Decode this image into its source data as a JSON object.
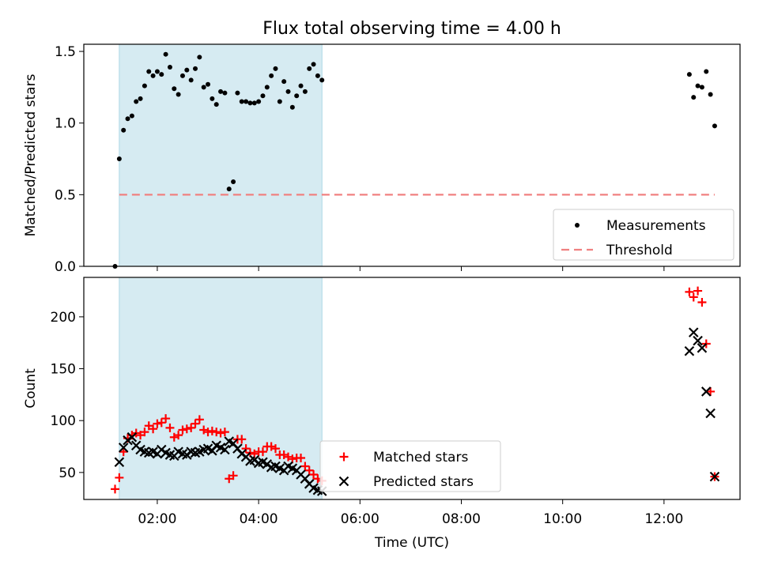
{
  "chart_data": {
    "title": "Flux total observing time = 4.00 h",
    "shaded_span": {
      "start": "01:15",
      "end": "05:15",
      "color": "#add8e6"
    },
    "xlabel": "Time (UTC)",
    "x_ticks": [
      "02:00",
      "04:00",
      "06:00",
      "08:00",
      "10:00",
      "12:00"
    ],
    "panels": [
      {
        "type": "scatter",
        "ylabel": "Matched/Predicted stars",
        "ylim": [
          0,
          1.55
        ],
        "y_ticks": [
          "0.0",
          "0.5",
          "1.0",
          "1.5"
        ],
        "legend_position": "lower-right",
        "series": [
          {
            "name": "Measurements",
            "marker": "dot",
            "color": "#000000",
            "points": [
              [
                "01:10",
                0.0
              ],
              [
                "01:15",
                0.75
              ],
              [
                "01:20",
                0.95
              ],
              [
                "01:25",
                1.03
              ],
              [
                "01:30",
                1.05
              ],
              [
                "01:35",
                1.15
              ],
              [
                "01:40",
                1.17
              ],
              [
                "01:45",
                1.26
              ],
              [
                "01:50",
                1.36
              ],
              [
                "01:55",
                1.33
              ],
              [
                "02:00",
                1.36
              ],
              [
                "02:05",
                1.34
              ],
              [
                "02:10",
                1.48
              ],
              [
                "02:15",
                1.39
              ],
              [
                "02:20",
                1.24
              ],
              [
                "02:25",
                1.2
              ],
              [
                "02:30",
                1.33
              ],
              [
                "02:35",
                1.37
              ],
              [
                "02:40",
                1.3
              ],
              [
                "02:45",
                1.38
              ],
              [
                "02:50",
                1.46
              ],
              [
                "02:55",
                1.25
              ],
              [
                "03:00",
                1.27
              ],
              [
                "03:05",
                1.17
              ],
              [
                "03:10",
                1.13
              ],
              [
                "03:15",
                1.22
              ],
              [
                "03:20",
                1.21
              ],
              [
                "03:25",
                0.54
              ],
              [
                "03:30",
                0.59
              ],
              [
                "03:35",
                1.21
              ],
              [
                "03:40",
                1.15
              ],
              [
                "03:45",
                1.15
              ],
              [
                "03:50",
                1.14
              ],
              [
                "03:55",
                1.14
              ],
              [
                "04:00",
                1.15
              ],
              [
                "04:05",
                1.19
              ],
              [
                "04:10",
                1.25
              ],
              [
                "04:15",
                1.33
              ],
              [
                "04:20",
                1.38
              ],
              [
                "04:25",
                1.15
              ],
              [
                "04:30",
                1.29
              ],
              [
                "04:35",
                1.22
              ],
              [
                "04:40",
                1.11
              ],
              [
                "04:45",
                1.19
              ],
              [
                "04:50",
                1.26
              ],
              [
                "04:55",
                1.22
              ],
              [
                "05:00",
                1.38
              ],
              [
                "05:05",
                1.41
              ],
              [
                "05:10",
                1.33
              ],
              [
                "05:15",
                1.3
              ],
              [
                "12:30",
                1.34
              ],
              [
                "12:35",
                1.18
              ],
              [
                "12:40",
                1.26
              ],
              [
                "12:45",
                1.25
              ],
              [
                "12:50",
                1.36
              ],
              [
                "12:55",
                1.2
              ],
              [
                "13:00",
                0.98
              ]
            ]
          },
          {
            "name": "Threshold",
            "kind": "line",
            "style": "dashed",
            "color": "#f08080",
            "points": [
              [
                "01:15",
                0.5
              ],
              [
                "13:00",
                0.5
              ]
            ]
          }
        ]
      },
      {
        "type": "scatter",
        "ylabel": "Count",
        "ylim": [
          24,
          238
        ],
        "y_ticks": [
          "50",
          "100",
          "150",
          "200"
        ],
        "legend_position": "lower-center",
        "series": [
          {
            "name": "Matched stars",
            "marker": "plus",
            "color": "#ff0000",
            "points": [
              [
                "01:10",
                34
              ],
              [
                "01:15",
                45
              ],
              [
                "01:20",
                70
              ],
              [
                "01:25",
                83
              ],
              [
                "01:30",
                86
              ],
              [
                "01:35",
                88
              ],
              [
                "01:40",
                86
              ],
              [
                "01:45",
                89
              ],
              [
                "01:50",
                95
              ],
              [
                "01:55",
                92
              ],
              [
                "02:00",
                97
              ],
              [
                "02:05",
                98
              ],
              [
                "02:10",
                102
              ],
              [
                "02:15",
                93
              ],
              [
                "02:20",
                84
              ],
              [
                "02:25",
                86
              ],
              [
                "02:30",
                91
              ],
              [
                "02:35",
                92
              ],
              [
                "02:40",
                93
              ],
              [
                "02:45",
                97
              ],
              [
                "02:50",
                101
              ],
              [
                "02:55",
                91
              ],
              [
                "03:00",
                89
              ],
              [
                "03:05",
                90
              ],
              [
                "03:10",
                89
              ],
              [
                "03:15",
                88
              ],
              [
                "03:20",
                89
              ],
              [
                "03:25",
                44
              ],
              [
                "03:30",
                47
              ],
              [
                "03:35",
                82
              ],
              [
                "03:40",
                82
              ],
              [
                "03:45",
                73
              ],
              [
                "03:50",
                69
              ],
              [
                "03:55",
                68
              ],
              [
                "04:00",
                70
              ],
              [
                "04:05",
                70
              ],
              [
                "04:10",
                75
              ],
              [
                "04:15",
                75
              ],
              [
                "04:20",
                73
              ],
              [
                "04:25",
                67
              ],
              [
                "04:30",
                67
              ],
              [
                "04:35",
                65
              ],
              [
                "04:40",
                63
              ],
              [
                "04:45",
                64
              ],
              [
                "04:50",
                64
              ],
              [
                "04:55",
                56
              ],
              [
                "05:00",
                52
              ],
              [
                "05:05",
                48
              ],
              [
                "05:10",
                44
              ],
              [
                "05:15",
                42
              ],
              [
                "12:30",
                224
              ],
              [
                "12:35",
                219
              ],
              [
                "12:40",
                225
              ],
              [
                "12:45",
                214
              ],
              [
                "12:50",
                174
              ],
              [
                "12:55",
                128
              ],
              [
                "13:00",
                46
              ]
            ]
          },
          {
            "name": "Predicted stars",
            "marker": "cross",
            "color": "#000000",
            "points": [
              [
                "01:15",
                60
              ],
              [
                "01:20",
                74
              ],
              [
                "01:25",
                81
              ],
              [
                "01:30",
                84
              ],
              [
                "01:35",
                76
              ],
              [
                "01:40",
                72
              ],
              [
                "01:45",
                70
              ],
              [
                "01:50",
                69
              ],
              [
                "01:55",
                70
              ],
              [
                "02:00",
                68
              ],
              [
                "02:05",
                72
              ],
              [
                "02:10",
                69
              ],
              [
                "02:15",
                67
              ],
              [
                "02:20",
                66
              ],
              [
                "02:25",
                70
              ],
              [
                "02:30",
                68
              ],
              [
                "02:35",
                67
              ],
              [
                "02:40",
                70
              ],
              [
                "02:45",
                69
              ],
              [
                "02:50",
                70
              ],
              [
                "02:55",
                72
              ],
              [
                "03:00",
                73
              ],
              [
                "03:05",
                71
              ],
              [
                "03:10",
                76
              ],
              [
                "03:15",
                74
              ],
              [
                "03:20",
                72
              ],
              [
                "03:25",
                80
              ],
              [
                "03:30",
                78
              ],
              [
                "03:35",
                73
              ],
              [
                "03:40",
                68
              ],
              [
                "03:45",
                65
              ],
              [
                "03:50",
                61
              ],
              [
                "03:55",
                62
              ],
              [
                "04:00",
                59
              ],
              [
                "04:05",
                60
              ],
              [
                "04:10",
                58
              ],
              [
                "04:15",
                55
              ],
              [
                "04:20",
                56
              ],
              [
                "04:25",
                54
              ],
              [
                "04:30",
                52
              ],
              [
                "04:35",
                56
              ],
              [
                "04:40",
                54
              ],
              [
                "04:45",
                52
              ],
              [
                "04:50",
                48
              ],
              [
                "04:55",
                44
              ],
              [
                "05:00",
                39
              ],
              [
                "05:05",
                35
              ],
              [
                "05:10",
                33
              ],
              [
                "05:15",
                32
              ],
              [
                "12:30",
                167
              ],
              [
                "12:35",
                185
              ],
              [
                "12:40",
                177
              ],
              [
                "12:45",
                170
              ],
              [
                "12:50",
                128
              ],
              [
                "12:55",
                107
              ],
              [
                "13:00",
                46
              ]
            ]
          }
        ]
      }
    ]
  }
}
